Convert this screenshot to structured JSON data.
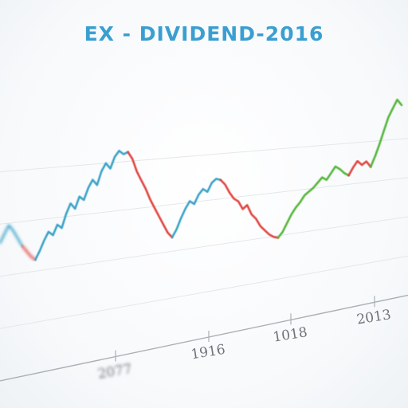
{
  "chart_data": {
    "type": "line",
    "title": "EX - DIVIDEND-2016",
    "xlabel": "",
    "ylabel": "",
    "grid": true,
    "legend": "none",
    "x_tick_labels": [
      "2077",
      "1916",
      "1018",
      "2013"
    ],
    "colors": {
      "title": "#3a9fd0",
      "up_blue": "#3ba3c7",
      "down_red": "#e0453f",
      "up_green": "#55b63a",
      "axis": "#aab0b4",
      "grid": "#e4e8eb",
      "tick_label": "#6e7478"
    },
    "segments": [
      {
        "color": "up_blue",
        "values": [
          40,
          44,
          48,
          45,
          41,
          37
        ]
      },
      {
        "color": "down_red",
        "values": [
          37,
          34,
          31,
          29
        ]
      },
      {
        "color": "up_blue",
        "values": [
          29,
          33,
          38,
          42,
          40,
          45,
          43,
          50,
          55,
          52,
          58,
          56,
          62,
          66,
          63,
          70,
          74,
          71,
          77,
          80,
          78,
          79
        ]
      },
      {
        "color": "down_red",
        "values": [
          79,
          75,
          68,
          63,
          58,
          52,
          47,
          42,
          37,
          32,
          29
        ]
      },
      {
        "color": "up_blue",
        "values": [
          29,
          33,
          39,
          44,
          48,
          46,
          51,
          54,
          52,
          57,
          59,
          58
        ]
      },
      {
        "color": "down_red",
        "values": [
          58,
          55,
          50,
          46,
          44,
          39,
          41,
          35,
          32,
          27,
          24,
          21,
          19,
          18
        ]
      },
      {
        "color": "up_green",
        "values": [
          18,
          21,
          26,
          31,
          35,
          38,
          42,
          44,
          46,
          49,
          52,
          50,
          54,
          58,
          56,
          53,
          51
        ]
      },
      {
        "color": "down_red",
        "values": [
          51,
          56,
          60,
          57,
          59,
          55
        ]
      },
      {
        "color": "up_green",
        "values": [
          55,
          62,
          70,
          79,
          88,
          94,
          100,
          96
        ]
      }
    ]
  }
}
